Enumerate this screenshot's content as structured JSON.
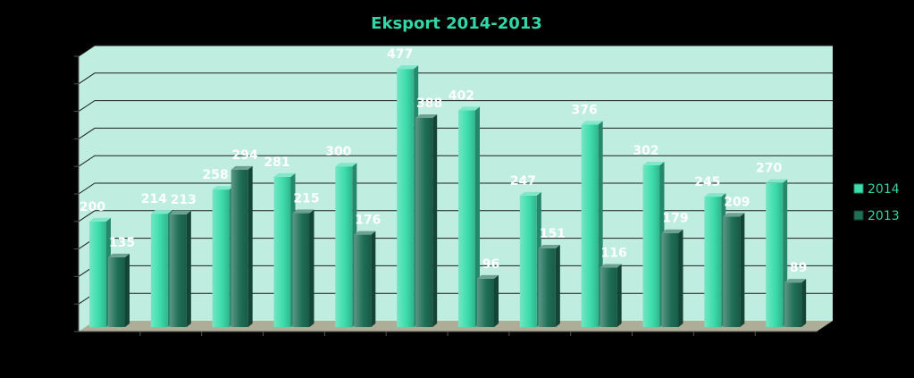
{
  "colors": {
    "background": "#000000",
    "plot_wall": "#bfeee0",
    "floor": "#aeae98",
    "gridline": "#1e1e1e",
    "title": "#33d6a6",
    "legend_text": "#2fd6a3",
    "series_2014": "#3cdcab",
    "series_2013": "#1f6e56"
  },
  "chart_data": {
    "type": "bar",
    "title": "Eksport 2014-2013",
    "xlabel": "",
    "ylabel": "",
    "categories": [
      "",
      "",
      "",
      "",
      "",
      "",
      "",
      "",
      "",
      "",
      "",
      ""
    ],
    "series": [
      {
        "name": "2014",
        "values": [
          200,
          214,
          258,
          281,
          300,
          477,
          402,
          247,
          376,
          302,
          245,
          270
        ]
      },
      {
        "name": "2013",
        "values": [
          135,
          213,
          294,
          215,
          176,
          388,
          96,
          151,
          116,
          179,
          209,
          89
        ]
      }
    ],
    "ylim": [
      0,
      500
    ],
    "ytick_step": 50,
    "grid": true,
    "legend_position": "right",
    "bar_style": "3d"
  }
}
